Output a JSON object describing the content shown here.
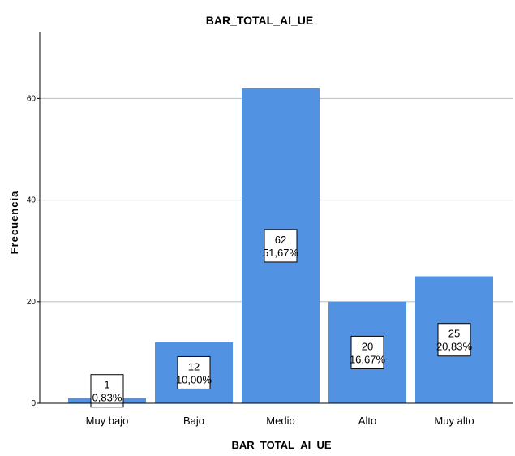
{
  "chart_data": {
    "type": "bar",
    "title": "BAR_TOTAL_AI_UE",
    "xlabel": "BAR_TOTAL_AI_UE",
    "ylabel": "Frecuencia",
    "categories": [
      "Muy bajo",
      "Bajo",
      "Medio",
      "Alto",
      "Muy alto"
    ],
    "values": [
      1,
      12,
      62,
      20,
      25
    ],
    "percent_labels": [
      "0,83%",
      "10,00%",
      "51,67%",
      "16,67%",
      "20,83%"
    ],
    "ylim": [
      0,
      73
    ],
    "yticks": [
      0,
      20,
      40,
      60
    ],
    "grid": true,
    "colors": {
      "bar": "#5192e2",
      "grid": "#bdbdbd",
      "axis": "#000000"
    }
  }
}
